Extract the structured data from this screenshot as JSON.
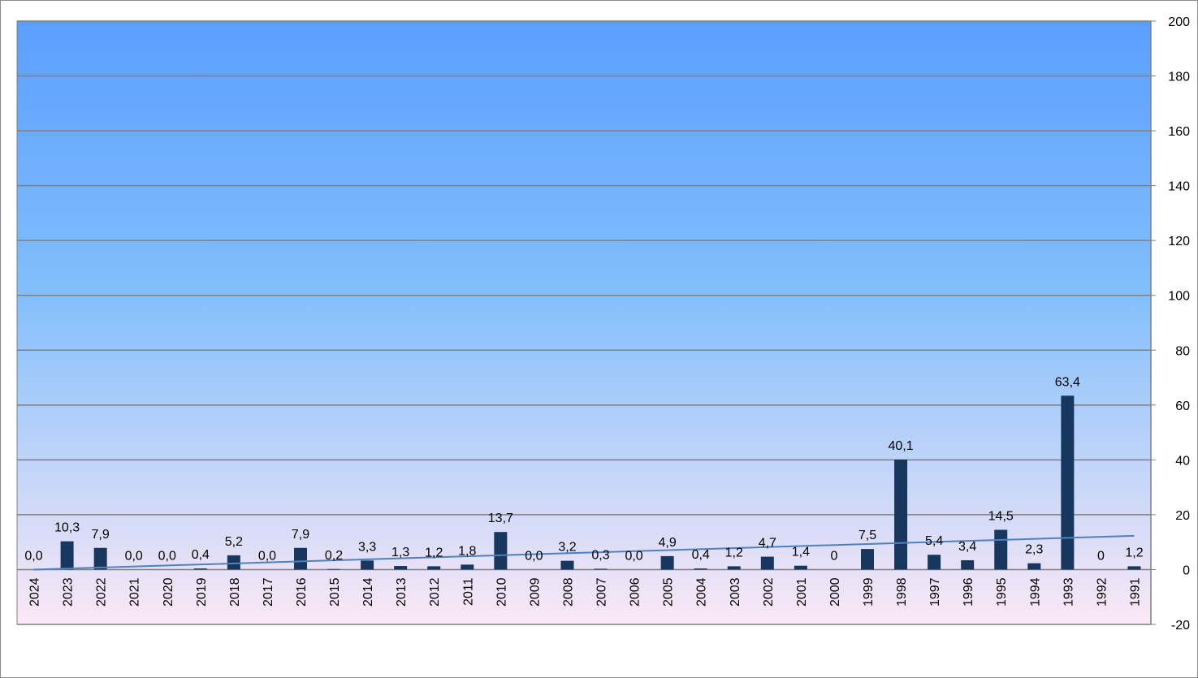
{
  "chart_data": {
    "type": "bar",
    "categories": [
      "2024",
      "2023",
      "2022",
      "2021",
      "2020",
      "2019",
      "2018",
      "2017",
      "2016",
      "2015",
      "2014",
      "2013",
      "2012",
      "2011",
      "2010",
      "2009",
      "2008",
      "2007",
      "2006",
      "2005",
      "2004",
      "2003",
      "2002",
      "2001",
      "2000",
      "1999",
      "1998",
      "1997",
      "1996",
      "1995",
      "1994",
      "1993",
      "1992",
      "1991"
    ],
    "values": [
      0.0,
      10.3,
      7.9,
      0.0,
      0.0,
      0.4,
      5.2,
      0.0,
      7.9,
      0.2,
      3.3,
      1.3,
      1.2,
      1.8,
      13.7,
      0.0,
      3.2,
      0.3,
      0.0,
      4.9,
      0.4,
      1.2,
      4.7,
      1.4,
      0,
      7.5,
      40.1,
      5.4,
      3.4,
      14.5,
      2.3,
      63.4,
      0,
      1.2
    ],
    "data_labels": [
      "0,0",
      "10,3",
      "7,9",
      "0,0",
      "0,0",
      "0,4",
      "5,2",
      "0,0",
      "7,9",
      "0,2",
      "3,3",
      "1,3",
      "1,2",
      "1,8",
      "13,7",
      "0,0",
      "3,2",
      "0,3",
      "0,0",
      "4,9",
      "0,4",
      "1,2",
      "4,7",
      "1,4",
      "0",
      "7,5",
      "40,1",
      "5,4",
      "3,4",
      "14,5",
      "2,3",
      "63,4",
      "0",
      "1,2"
    ],
    "ylim": [
      -20,
      200
    ],
    "yticks": [
      200,
      180,
      160,
      140,
      120,
      100,
      80,
      60,
      40,
      20,
      0,
      -20
    ],
    "y_axis_side": "right",
    "grid": true,
    "trendline": {
      "type": "linear",
      "start": 0.0,
      "end": 12.3
    },
    "title": "",
    "xlabel": "",
    "ylabel": "",
    "colors": {
      "bar": "#17375e",
      "trend": "#4f81bd",
      "grid": "#808080",
      "bg_top": "#5b9eff",
      "bg_mid": "#82bffc",
      "bg_bottom": "#fbe8f6"
    }
  }
}
